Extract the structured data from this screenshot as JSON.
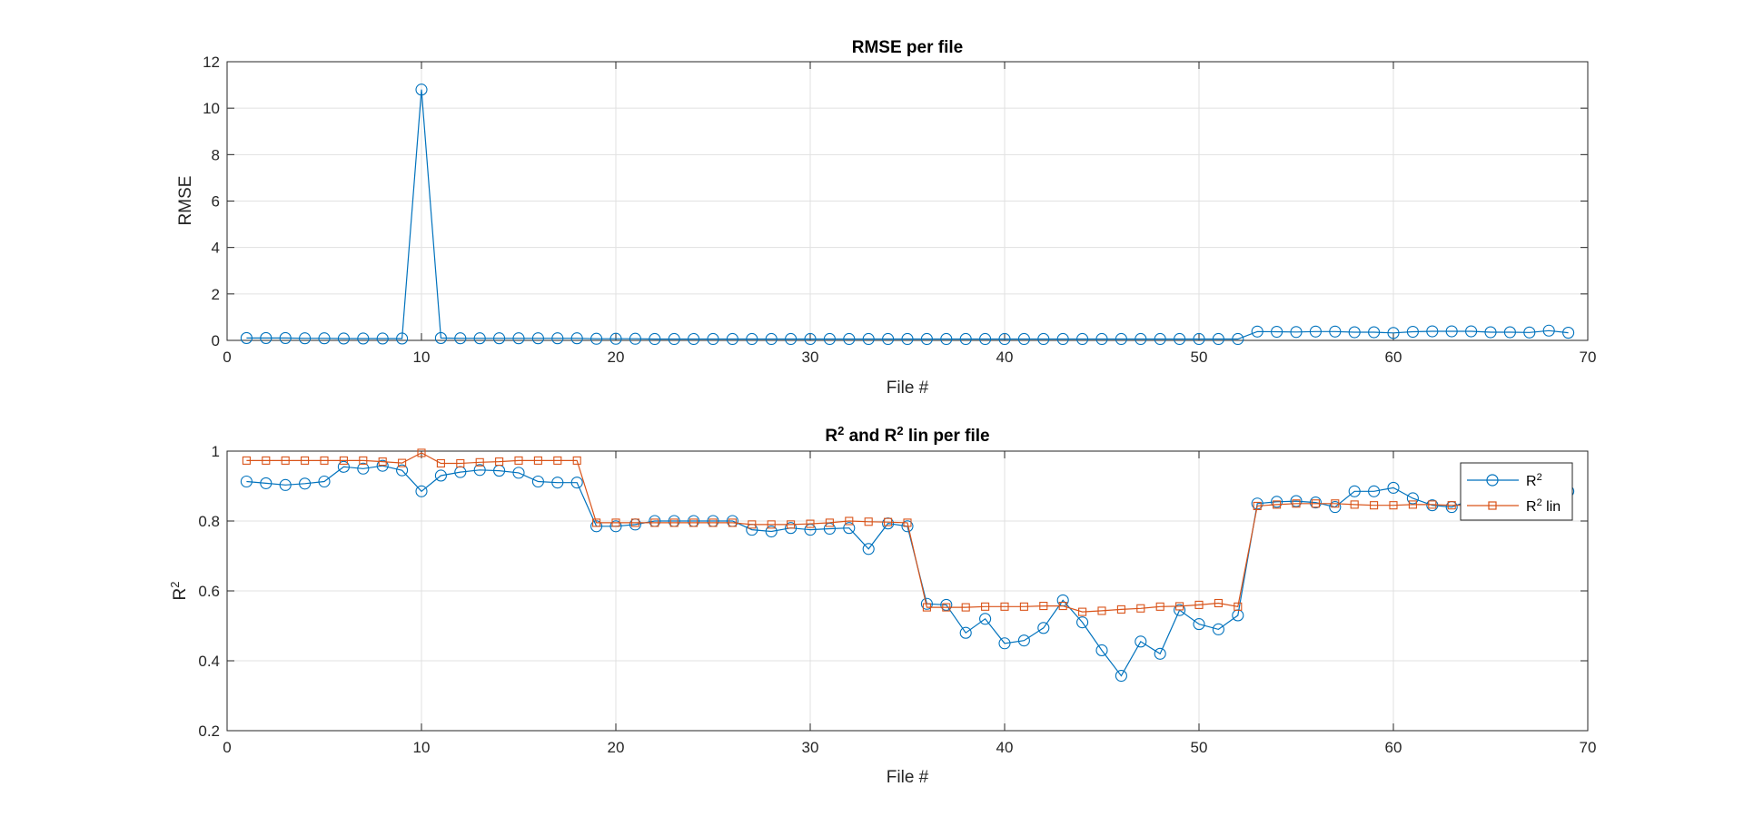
{
  "chart_data": [
    {
      "type": "line",
      "title": "RMSE per file",
      "xlabel": "File #",
      "ylabel": "RMSE",
      "xlim": [
        0,
        70
      ],
      "ylim": [
        0,
        12
      ],
      "xticks": [
        "0",
        "10",
        "20",
        "30",
        "40",
        "50",
        "60",
        "70"
      ],
      "yticks": [
        "0",
        "2",
        "4",
        "6",
        "8",
        "10",
        "12"
      ],
      "grid": true,
      "x": [
        1,
        2,
        3,
        4,
        5,
        6,
        7,
        8,
        9,
        10,
        11,
        12,
        13,
        14,
        15,
        16,
        17,
        18,
        19,
        20,
        21,
        22,
        23,
        24,
        25,
        26,
        27,
        28,
        29,
        30,
        31,
        32,
        33,
        34,
        35,
        36,
        37,
        38,
        39,
        40,
        41,
        42,
        43,
        44,
        45,
        46,
        47,
        48,
        49,
        50,
        51,
        52,
        53,
        54,
        55,
        56,
        57,
        58,
        59,
        60,
        61,
        62,
        63,
        64,
        65,
        66,
        67,
        68,
        69
      ],
      "series": [
        {
          "color": "#0072BD",
          "marker": "circle",
          "values": [
            0.1,
            0.1,
            0.1,
            0.09,
            0.09,
            0.08,
            0.08,
            0.08,
            0.08,
            10.8,
            0.1,
            0.09,
            0.09,
            0.09,
            0.09,
            0.09,
            0.09,
            0.09,
            0.07,
            0.07,
            0.07,
            0.06,
            0.06,
            0.06,
            0.06,
            0.06,
            0.06,
            0.06,
            0.06,
            0.06,
            0.06,
            0.06,
            0.06,
            0.06,
            0.06,
            0.06,
            0.06,
            0.06,
            0.06,
            0.06,
            0.06,
            0.06,
            0.06,
            0.06,
            0.06,
            0.06,
            0.06,
            0.06,
            0.06,
            0.06,
            0.06,
            0.06,
            0.38,
            0.37,
            0.36,
            0.38,
            0.38,
            0.35,
            0.35,
            0.32,
            0.37,
            0.39,
            0.39,
            0.39,
            0.35,
            0.35,
            0.34,
            0.42,
            0.33
          ]
        }
      ]
    },
    {
      "type": "line",
      "title_main": "R",
      "title_sup": "2",
      "title_mid": " and R",
      "title_sup2": "2",
      "title_end": " lin per file",
      "xlabel": "File #",
      "ylabel_main": "R",
      "ylabel_sup": "2",
      "xlim": [
        0,
        70
      ],
      "ylim": [
        0.2,
        1
      ],
      "xticks": [
        "0",
        "10",
        "20",
        "30",
        "40",
        "50",
        "60",
        "70"
      ],
      "yticks": [
        "0.2",
        "0.4",
        "0.6",
        "0.8",
        "1"
      ],
      "grid": true,
      "legend": "top-right",
      "x": [
        1,
        2,
        3,
        4,
        5,
        6,
        7,
        8,
        9,
        10,
        11,
        12,
        13,
        14,
        15,
        16,
        17,
        18,
        19,
        20,
        21,
        22,
        23,
        24,
        25,
        26,
        27,
        28,
        29,
        30,
        31,
        32,
        33,
        34,
        35,
        36,
        37,
        38,
        39,
        40,
        41,
        42,
        43,
        44,
        45,
        46,
        47,
        48,
        49,
        50,
        51,
        52,
        53,
        54,
        55,
        56,
        57,
        58,
        59,
        60,
        61,
        62,
        63,
        64,
        65,
        66,
        67,
        68,
        69
      ],
      "series": [
        {
          "name_main": "R",
          "name_sup": "2",
          "name_tail": "",
          "color": "#0072BD",
          "marker": "circle",
          "values": [
            0.913,
            0.908,
            0.903,
            0.907,
            0.913,
            0.955,
            0.95,
            0.958,
            0.945,
            0.885,
            0.93,
            0.94,
            0.946,
            0.944,
            0.938,
            0.913,
            0.91,
            0.91,
            0.785,
            0.785,
            0.79,
            0.8,
            0.8,
            0.8,
            0.8,
            0.8,
            0.775,
            0.77,
            0.78,
            0.775,
            0.778,
            0.78,
            0.72,
            0.793,
            0.785,
            0.563,
            0.56,
            0.48,
            0.52,
            0.45,
            0.458,
            0.494,
            0.573,
            0.51,
            0.43,
            0.357,
            0.455,
            0.42,
            0.545,
            0.505,
            0.49,
            0.53,
            0.85,
            0.855,
            0.857,
            0.853,
            0.84,
            0.885,
            0.885,
            0.895,
            0.865,
            0.845,
            0.84,
            0.86,
            0.86,
            0.86,
            0.86,
            0.87,
            0.885
          ]
        },
        {
          "name_main": "R",
          "name_sup": "2",
          "name_tail": " lin",
          "color": "#D95319",
          "marker": "square",
          "values": [
            0.973,
            0.973,
            0.973,
            0.973,
            0.973,
            0.973,
            0.973,
            0.97,
            0.966,
            0.995,
            0.965,
            0.965,
            0.968,
            0.97,
            0.973,
            0.973,
            0.973,
            0.973,
            0.795,
            0.795,
            0.795,
            0.795,
            0.795,
            0.795,
            0.795,
            0.795,
            0.79,
            0.79,
            0.79,
            0.792,
            0.795,
            0.8,
            0.798,
            0.797,
            0.795,
            0.553,
            0.553,
            0.553,
            0.555,
            0.555,
            0.555,
            0.557,
            0.557,
            0.54,
            0.543,
            0.547,
            0.55,
            0.555,
            0.556,
            0.56,
            0.565,
            0.555,
            0.843,
            0.847,
            0.85,
            0.85,
            0.85,
            0.847,
            0.845,
            0.845,
            0.847,
            0.847,
            0.845,
            0.845,
            0.845,
            0.845,
            0.845,
            0.845,
            0.845
          ]
        }
      ]
    }
  ]
}
